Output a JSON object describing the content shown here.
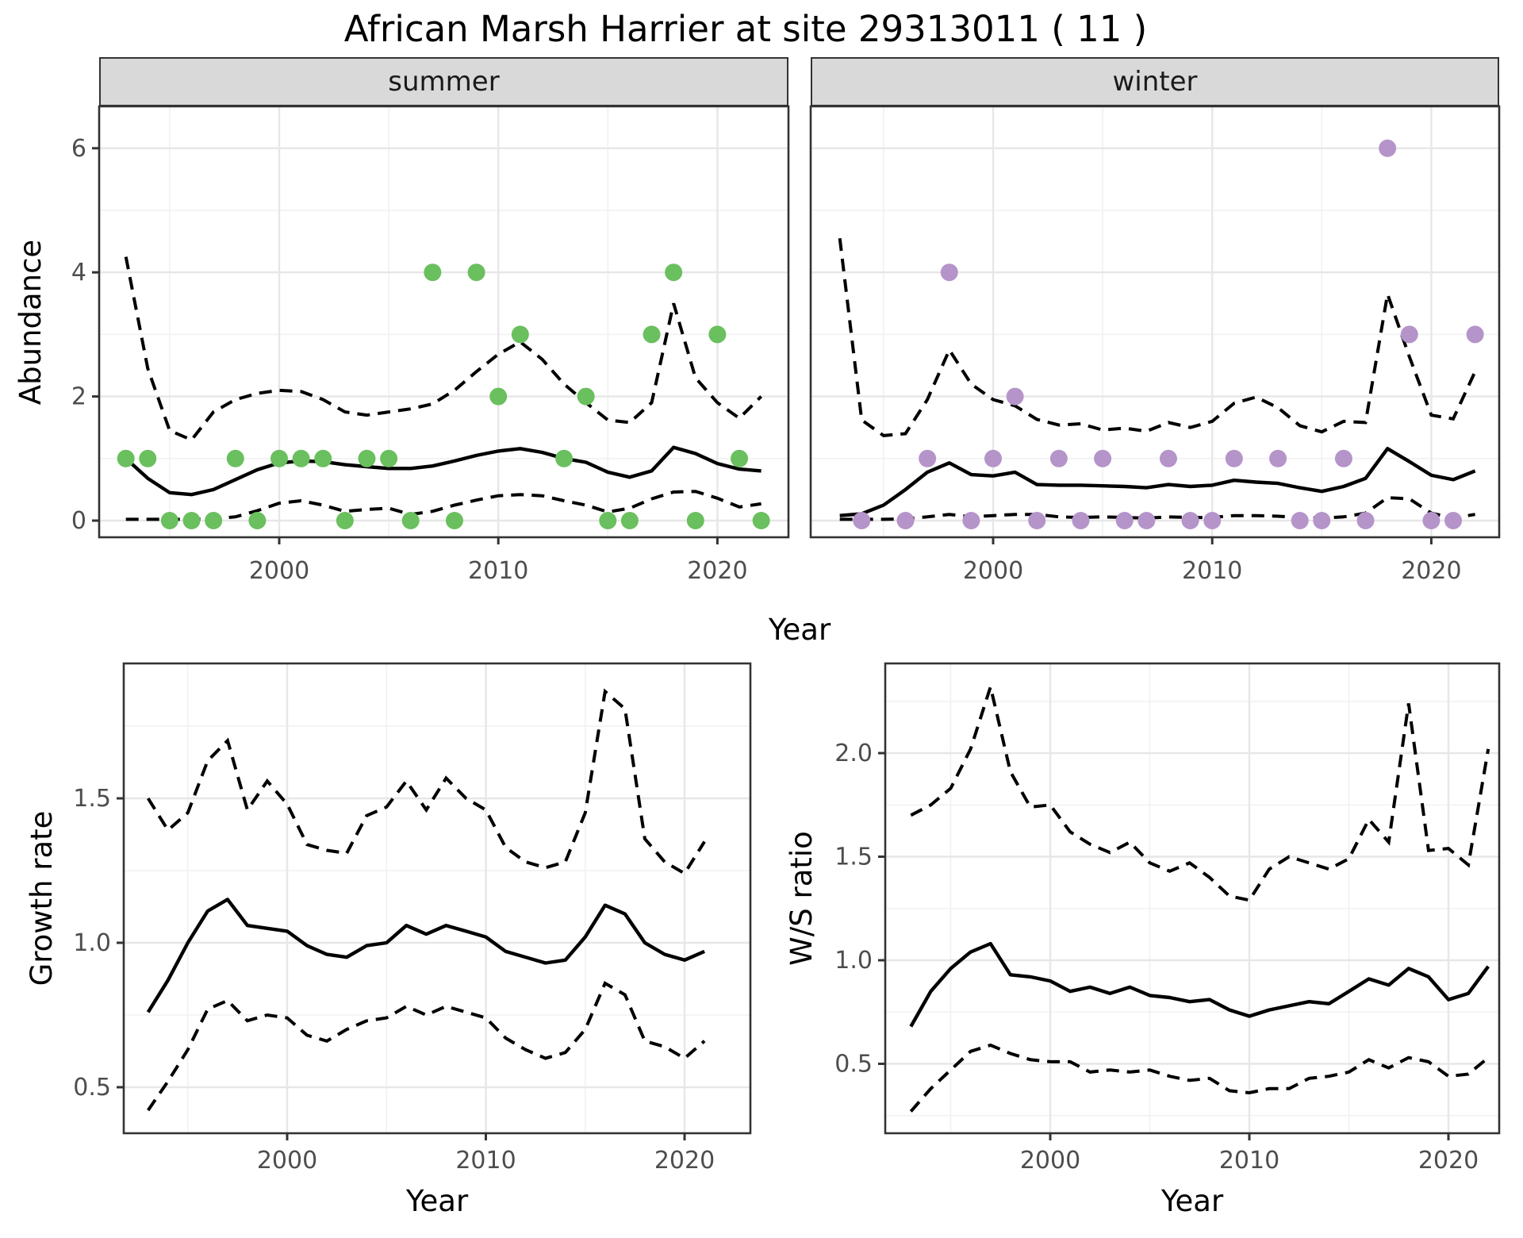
{
  "title": "African Marsh Harrier at site 29313011 ( 11 )",
  "facets": {
    "summer": "summer",
    "winter": "winter"
  },
  "axis_titles": {
    "abundance": "Abundance",
    "year": "Year",
    "growth_rate": "Growth rate",
    "ws_ratio": "W/S ratio"
  },
  "colors": {
    "summer_point": "#6ABF5E",
    "winter_point": "#B594CA",
    "line": "#000000",
    "axis_text": "#4d4d4d",
    "strip_bg": "#d9d9d9",
    "panel_border": "#333333",
    "grid_major": "#e7e7e7",
    "grid_minor": "#f1f1f1"
  },
  "chart_data": [
    {
      "id": "abundance-summer",
      "type": "line",
      "facet": "summer",
      "xlabel": "Year",
      "ylabel": "Abundance",
      "x_ticks": [
        2000,
        2010,
        2020
      ],
      "x_tick_labels": [
        "2000",
        "2010",
        "2020"
      ],
      "x_minor": [
        1995,
        2005,
        2015
      ],
      "y_ticks": [
        0,
        2,
        4,
        6
      ],
      "y_tick_labels": [
        "0",
        "2",
        "4",
        "6"
      ],
      "y_minor": [
        1,
        3,
        5
      ],
      "xlim": [
        1991.8,
        2023.2
      ],
      "ylim": [
        -0.27,
        6.68
      ],
      "legend": "none",
      "grid": true,
      "years": [
        1993,
        1994,
        1995,
        1996,
        1997,
        1998,
        1999,
        2000,
        2001,
        2002,
        2003,
        2004,
        2005,
        2006,
        2007,
        2008,
        2009,
        2010,
        2011,
        2012,
        2013,
        2014,
        2015,
        2016,
        2017,
        2018,
        2019,
        2020,
        2021,
        2022
      ],
      "observed": [
        1,
        1,
        0,
        0,
        0,
        1,
        0,
        1,
        1,
        1,
        0,
        1,
        1,
        0,
        4,
        0,
        4,
        2,
        3,
        null,
        1,
        2,
        0,
        0,
        3,
        4,
        0,
        3,
        1,
        0
      ],
      "fit": [
        1.0,
        0.68,
        0.45,
        0.42,
        0.5,
        0.66,
        0.82,
        0.93,
        0.96,
        0.95,
        0.9,
        0.87,
        0.84,
        0.84,
        0.88,
        0.96,
        1.05,
        1.12,
        1.16,
        1.1,
        1.0,
        0.94,
        0.78,
        0.7,
        0.8,
        1.18,
        1.08,
        0.92,
        0.83,
        0.8
      ],
      "upper": [
        4.25,
        2.45,
        1.45,
        1.3,
        1.75,
        1.95,
        2.05,
        2.1,
        2.08,
        1.95,
        1.75,
        1.7,
        1.75,
        1.8,
        1.88,
        2.1,
        2.4,
        2.68,
        2.88,
        2.6,
        2.2,
        1.9,
        1.62,
        1.58,
        1.9,
        3.5,
        2.3,
        1.9,
        1.65,
        2.0
      ],
      "lower": [
        0.02,
        0.02,
        0.02,
        0.02,
        0.03,
        0.06,
        0.16,
        0.28,
        0.32,
        0.25,
        0.15,
        0.18,
        0.2,
        0.1,
        0.15,
        0.25,
        0.33,
        0.4,
        0.42,
        0.4,
        0.32,
        0.25,
        0.14,
        0.2,
        0.35,
        0.46,
        0.47,
        0.36,
        0.22,
        0.27
      ]
    },
    {
      "id": "abundance-winter",
      "type": "line",
      "facet": "winter",
      "xlabel": "Year",
      "ylabel": "Abundance",
      "x_ticks": [
        2000,
        2010,
        2020
      ],
      "x_tick_labels": [
        "2000",
        "2010",
        "2020"
      ],
      "x_minor": [
        1995,
        2005,
        2015
      ],
      "y_ticks": [
        0,
        2,
        4,
        6
      ],
      "y_tick_labels": [
        "0",
        "2",
        "4",
        "6"
      ],
      "y_minor": [
        1,
        3,
        5
      ],
      "xlim": [
        1991.8,
        2023.2
      ],
      "ylim": [
        -0.27,
        6.68
      ],
      "legend": "none",
      "grid": true,
      "years": [
        1993,
        1994,
        1995,
        1996,
        1997,
        1998,
        1999,
        2000,
        2001,
        2002,
        2003,
        2004,
        2005,
        2006,
        2007,
        2008,
        2009,
        2010,
        2011,
        2012,
        2013,
        2014,
        2015,
        2016,
        2017,
        2018,
        2019,
        2020,
        2021,
        2022
      ],
      "observed": [
        null,
        0,
        null,
        0,
        1,
        4,
        0,
        1,
        2,
        0,
        1,
        0,
        1,
        0,
        0,
        1,
        0,
        0,
        1,
        null,
        1,
        0,
        0,
        1,
        0,
        6,
        3,
        0,
        0,
        3
      ],
      "fit": [
        0.08,
        0.11,
        0.25,
        0.5,
        0.78,
        0.93,
        0.74,
        0.72,
        0.78,
        0.58,
        0.57,
        0.57,
        0.56,
        0.55,
        0.53,
        0.58,
        0.55,
        0.57,
        0.65,
        0.62,
        0.6,
        0.53,
        0.47,
        0.55,
        0.68,
        1.16,
        0.95,
        0.73,
        0.66,
        0.8
      ],
      "upper": [
        4.55,
        1.62,
        1.37,
        1.4,
        1.95,
        2.75,
        2.2,
        1.95,
        1.85,
        1.63,
        1.54,
        1.56,
        1.46,
        1.49,
        1.44,
        1.58,
        1.5,
        1.6,
        1.89,
        1.99,
        1.82,
        1.53,
        1.43,
        1.6,
        1.58,
        3.65,
        2.64,
        1.7,
        1.64,
        2.4
      ],
      "lower": [
        0.02,
        0.02,
        0.02,
        0.03,
        0.06,
        0.1,
        0.06,
        0.08,
        0.1,
        0.1,
        0.06,
        0.05,
        0.06,
        0.05,
        0.04,
        0.06,
        0.05,
        0.05,
        0.08,
        0.08,
        0.07,
        0.05,
        0.04,
        0.06,
        0.12,
        0.37,
        0.35,
        0.12,
        0.04,
        0.1
      ]
    },
    {
      "id": "growth-rate",
      "type": "line",
      "facet": null,
      "xlabel": "Year",
      "ylabel": "Growth rate",
      "x_ticks": [
        2000,
        2010,
        2020
      ],
      "x_tick_labels": [
        "2000",
        "2010",
        "2020"
      ],
      "x_minor": [
        1995,
        2005,
        2015
      ],
      "y_ticks": [
        0.5,
        1.0,
        1.5
      ],
      "y_tick_labels": [
        "0.5",
        "1.0",
        "1.5"
      ],
      "y_minor": [
        0.75,
        1.25,
        1.75
      ],
      "xlim": [
        1991.8,
        2023.3
      ],
      "ylim": [
        0.34,
        1.97
      ],
      "legend": "none",
      "grid": true,
      "years": [
        1993,
        1994,
        1995,
        1996,
        1997,
        1998,
        1999,
        2000,
        2001,
        2002,
        2003,
        2004,
        2005,
        2006,
        2007,
        2008,
        2009,
        2010,
        2011,
        2012,
        2013,
        2014,
        2015,
        2016,
        2017,
        2018,
        2019,
        2020,
        2021
      ],
      "observed": [],
      "fit": [
        0.76,
        0.87,
        1.0,
        1.11,
        1.15,
        1.06,
        1.05,
        1.04,
        0.99,
        0.96,
        0.95,
        0.99,
        1.0,
        1.06,
        1.03,
        1.06,
        1.04,
        1.02,
        0.97,
        0.95,
        0.93,
        0.94,
        1.02,
        1.13,
        1.1,
        1.0,
        0.96,
        0.94,
        0.97
      ],
      "upper": [
        1.5,
        1.39,
        1.45,
        1.63,
        1.7,
        1.46,
        1.56,
        1.48,
        1.34,
        1.32,
        1.31,
        1.44,
        1.47,
        1.56,
        1.46,
        1.57,
        1.5,
        1.46,
        1.33,
        1.28,
        1.26,
        1.28,
        1.45,
        1.87,
        1.81,
        1.36,
        1.28,
        1.24,
        1.35
      ],
      "lower": [
        0.42,
        0.52,
        0.63,
        0.77,
        0.8,
        0.73,
        0.75,
        0.74,
        0.68,
        0.66,
        0.7,
        0.73,
        0.74,
        0.78,
        0.75,
        0.78,
        0.76,
        0.74,
        0.67,
        0.63,
        0.6,
        0.62,
        0.7,
        0.86,
        0.82,
        0.66,
        0.64,
        0.6,
        0.66
      ]
    },
    {
      "id": "ws-ratio",
      "type": "line",
      "facet": null,
      "xlabel": "Year",
      "ylabel": "W/S ratio",
      "x_ticks": [
        2000,
        2010,
        2020
      ],
      "x_tick_labels": [
        "2000",
        "2010",
        "2020"
      ],
      "x_minor": [
        1995,
        2005,
        2015
      ],
      "y_ticks": [
        0.5,
        1.0,
        1.5,
        2.0
      ],
      "y_tick_labels": [
        "0.5",
        "1.0",
        "1.5",
        "2.0"
      ],
      "y_minor": [
        0.25,
        0.75,
        1.25,
        1.75,
        2.25
      ],
      "xlim": [
        1991.6,
        2022.5
      ],
      "ylim": [
        0.17,
        2.43
      ],
      "legend": "none",
      "grid": true,
      "years": [
        1993,
        1994,
        1995,
        1996,
        1997,
        1998,
        1999,
        2000,
        2001,
        2002,
        2003,
        2004,
        2005,
        2006,
        2007,
        2008,
        2009,
        2010,
        2011,
        2012,
        2013,
        2014,
        2015,
        2016,
        2017,
        2018,
        2019,
        2020,
        2021,
        2022
      ],
      "observed": [],
      "fit": [
        0.68,
        0.85,
        0.96,
        1.04,
        1.08,
        0.93,
        0.92,
        0.9,
        0.85,
        0.87,
        0.84,
        0.87,
        0.83,
        0.82,
        0.8,
        0.81,
        0.76,
        0.73,
        0.76,
        0.78,
        0.8,
        0.79,
        0.85,
        0.91,
        0.88,
        0.96,
        0.92,
        0.81,
        0.84,
        0.97
      ],
      "upper": [
        1.7,
        1.75,
        1.83,
        2.02,
        2.32,
        1.91,
        1.74,
        1.75,
        1.62,
        1.56,
        1.52,
        1.57,
        1.47,
        1.43,
        1.47,
        1.4,
        1.31,
        1.29,
        1.44,
        1.5,
        1.47,
        1.44,
        1.49,
        1.68,
        1.57,
        2.24,
        1.53,
        1.54,
        1.46,
        2.02
      ],
      "lower": [
        0.27,
        0.38,
        0.47,
        0.56,
        0.59,
        0.55,
        0.52,
        0.51,
        0.51,
        0.46,
        0.47,
        0.46,
        0.47,
        0.44,
        0.42,
        0.43,
        0.37,
        0.36,
        0.38,
        0.38,
        0.43,
        0.44,
        0.46,
        0.52,
        0.48,
        0.53,
        0.51,
        0.44,
        0.45,
        0.53
      ]
    }
  ]
}
